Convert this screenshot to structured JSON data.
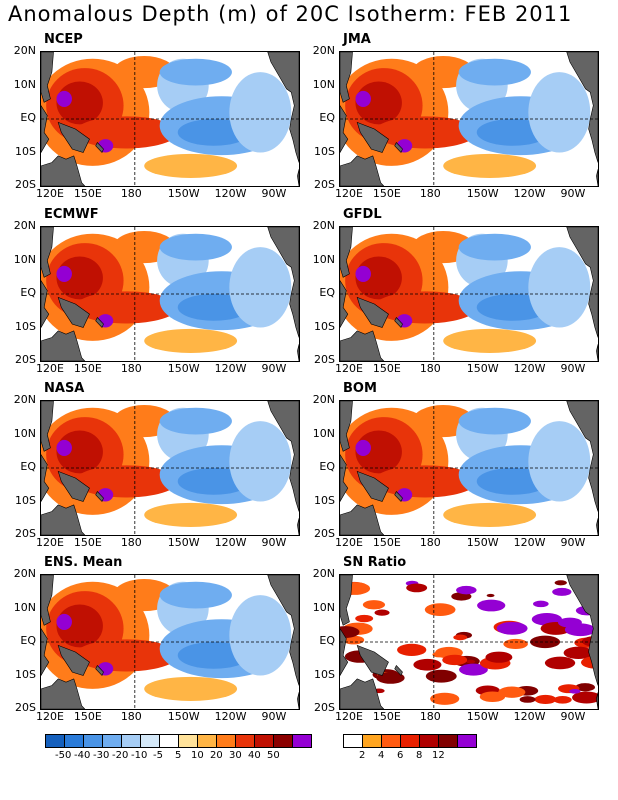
{
  "title": "Anomalous Depth (m) of 20C Isotherm: FEB 2011",
  "panels": [
    {
      "name": "NCEP",
      "type": "anomaly"
    },
    {
      "name": "JMA",
      "type": "anomaly"
    },
    {
      "name": "ECMWF",
      "type": "anomaly"
    },
    {
      "name": "GFDL",
      "type": "anomaly"
    },
    {
      "name": "NASA",
      "type": "anomaly"
    },
    {
      "name": "BOM",
      "type": "anomaly"
    },
    {
      "name": "ENS. Mean",
      "type": "anomaly"
    },
    {
      "name": "SN Ratio",
      "type": "ratio"
    }
  ],
  "axes": {
    "x_ticks": [
      "120E",
      "150E",
      "180",
      "150W",
      "120W",
      "90W"
    ],
    "y_ticks": [
      "20N",
      "10N",
      "EQ",
      "10S",
      "20S"
    ]
  },
  "colorbar_anomaly": {
    "labels": [
      "-50",
      "-40",
      "-30",
      "-20",
      "-10",
      "-5",
      "5",
      "10",
      "20",
      "30",
      "40",
      "50"
    ],
    "colors": [
      "#1560bd",
      "#2a7bd9",
      "#4a94e6",
      "#6fadf0",
      "#a6cdf5",
      "#d4e8f8",
      "#ffffff",
      "#ffe29a",
      "#ffb545",
      "#ff7c1a",
      "#e8340a",
      "#c01002",
      "#8b0000",
      "#9400d3"
    ]
  },
  "colorbar_ratio": {
    "labels": [
      "2",
      "4",
      "6",
      "8",
      "12"
    ],
    "colors": [
      "#ffffff",
      "#ffa520",
      "#ff5a10",
      "#e82000",
      "#b00000",
      "#800000",
      "#9400d3"
    ]
  }
}
